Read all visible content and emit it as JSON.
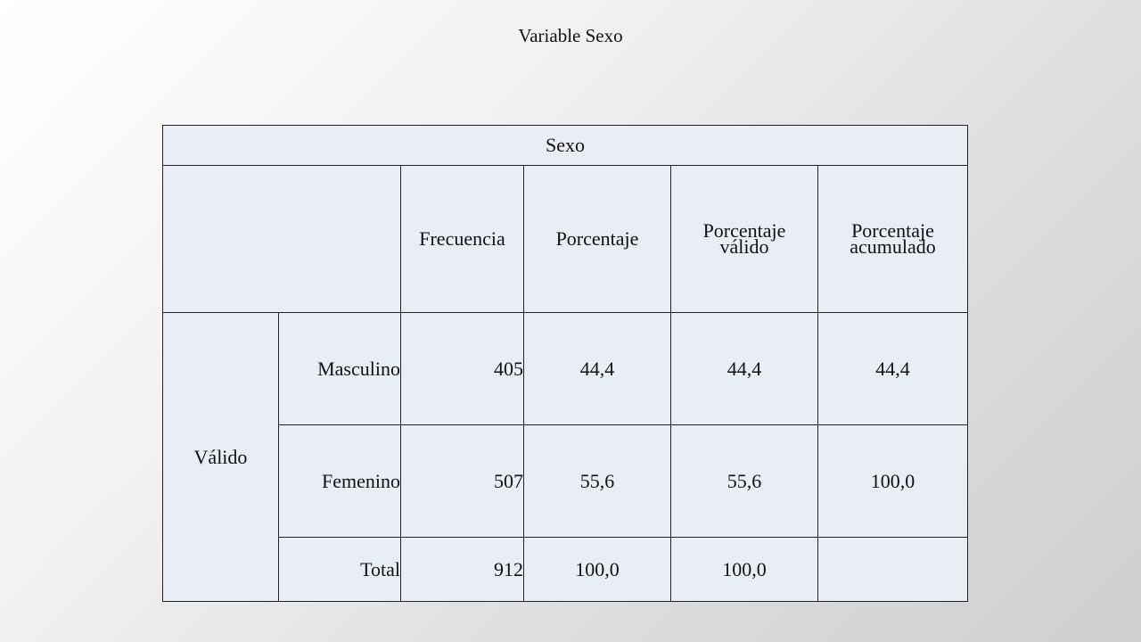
{
  "slide": {
    "title": "Variable Sexo"
  },
  "table": {
    "caption": "Sexo",
    "headers": {
      "frecuencia": "Frecuencia",
      "porcentaje": "Porcentaje",
      "porcentaje_valido_1": "Porcentaje",
      "porcentaje_valido_2": "válido",
      "porcentaje_acumulado_1": "Porcentaje",
      "porcentaje_acumulado_2": "acumulado"
    },
    "group_label": "Válido",
    "rows": [
      {
        "label": "Masculino",
        "frecuencia": "405",
        "porcentaje": "44,4",
        "porcentaje_valido": "44,4",
        "porcentaje_acumulado": "44,4"
      },
      {
        "label": "Femenino",
        "frecuencia": "507",
        "porcentaje": "55,6",
        "porcentaje_valido": "55,6",
        "porcentaje_acumulado": "100,0"
      },
      {
        "label": "Total",
        "frecuencia": "912",
        "porcentaje": "100,0",
        "porcentaje_valido": "100,0",
        "porcentaje_acumulado": ""
      }
    ]
  }
}
